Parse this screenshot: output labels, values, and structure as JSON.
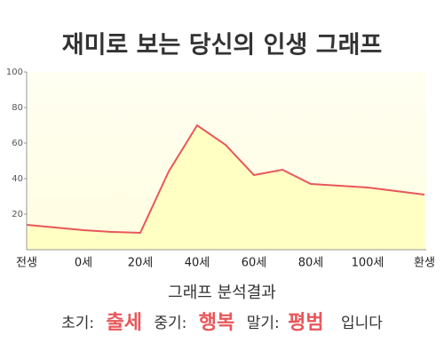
{
  "chart_data": {
    "type": "area",
    "title": "재미로 보는 당신의 인생 그래프",
    "categories": [
      "전생",
      null,
      "0세",
      null,
      "20세",
      null,
      "40세",
      null,
      "60세",
      null,
      "80세",
      null,
      "100세",
      null,
      "환생"
    ],
    "values": [
      14,
      12.5,
      11,
      10,
      9.5,
      44,
      70,
      59,
      42,
      45,
      37,
      36,
      35,
      33,
      31
    ],
    "color": "#e8575a",
    "fill": "#ffffc4",
    "ylim": [
      0,
      100
    ],
    "yticks": [
      20,
      40,
      60,
      80,
      100
    ],
    "grid": false
  },
  "analysis": {
    "heading": "그래프 분석결과",
    "items": [
      {
        "label": "초기:",
        "value": "출세"
      },
      {
        "label": "중기:",
        "value": "행복"
      },
      {
        "label": "말기:",
        "value": "평범"
      }
    ],
    "suffix": "입니다"
  }
}
